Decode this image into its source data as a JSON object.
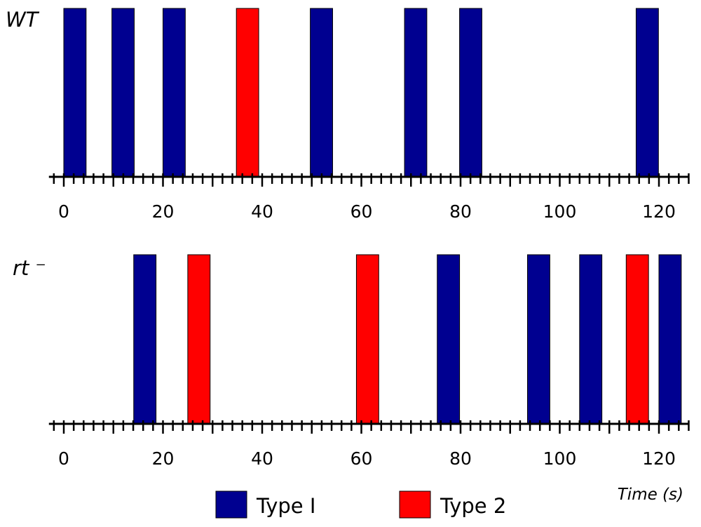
{
  "chart_data": {
    "type": "bar",
    "xlabel": "Time (s)",
    "xlim": [
      -3,
      126
    ],
    "xticks": [
      0,
      20,
      40,
      60,
      80,
      100,
      120
    ],
    "colors": {
      "Type I": "#000090",
      "Type 2": "#ff0000"
    },
    "legend": {
      "position": "bottom",
      "entries": [
        "Type I",
        "Type 2"
      ]
    },
    "panels": [
      {
        "label": "WT",
        "events": [
          {
            "start": 0,
            "end": 4.5,
            "type": "Type I"
          },
          {
            "start": 9.7,
            "end": 14.2,
            "type": "Type I"
          },
          {
            "start": 20,
            "end": 24.5,
            "type": "Type I"
          },
          {
            "start": 34.8,
            "end": 39.3,
            "type": "Type 2"
          },
          {
            "start": 49.7,
            "end": 54.2,
            "type": "Type I"
          },
          {
            "start": 68.7,
            "end": 73.2,
            "type": "Type I"
          },
          {
            "start": 79.8,
            "end": 84.3,
            "type": "Type I"
          },
          {
            "start": 115.4,
            "end": 119.9,
            "type": "Type I"
          }
        ]
      },
      {
        "label": "rt ⁻",
        "events": [
          {
            "start": 14.1,
            "end": 18.6,
            "type": "Type I"
          },
          {
            "start": 25,
            "end": 29.5,
            "type": "Type 2"
          },
          {
            "start": 59,
            "end": 63.5,
            "type": "Type 2"
          },
          {
            "start": 75.3,
            "end": 79.8,
            "type": "Type I"
          },
          {
            "start": 93.5,
            "end": 98,
            "type": "Type I"
          },
          {
            "start": 104,
            "end": 108.5,
            "type": "Type I"
          },
          {
            "start": 113.4,
            "end": 117.9,
            "type": "Type 2"
          },
          {
            "start": 120,
            "end": 124.5,
            "type": "Type I"
          }
        ]
      }
    ]
  }
}
